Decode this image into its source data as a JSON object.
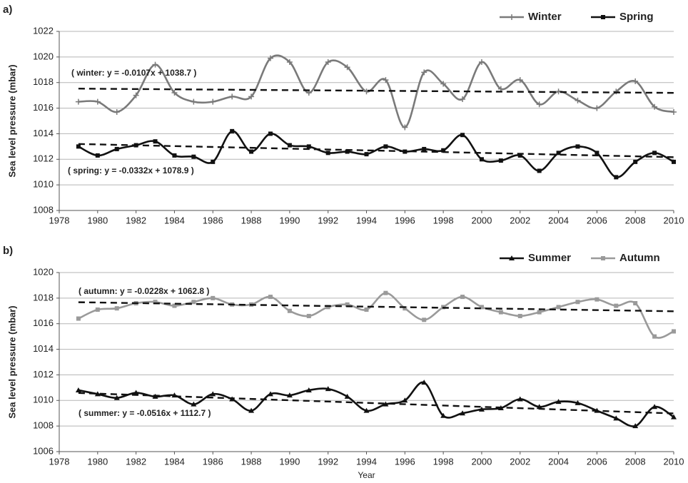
{
  "chart_data": [
    {
      "type": "line",
      "panel_label": "a)",
      "y_label": "Sea level pressure (mbar)",
      "legend": "top-right",
      "grid": true,
      "x": [
        1979,
        1980,
        1981,
        1982,
        1983,
        1984,
        1985,
        1986,
        1987,
        1988,
        1989,
        1990,
        1991,
        1992,
        1993,
        1994,
        1995,
        1996,
        1997,
        1998,
        1999,
        2000,
        2001,
        2002,
        2003,
        2004,
        2005,
        2006,
        2007,
        2008,
        2009,
        2010
      ],
      "xlim": [
        1978,
        2010
      ],
      "xticks": [
        1978,
        1980,
        1982,
        1984,
        1986,
        1988,
        1990,
        1992,
        1994,
        1996,
        1998,
        2000,
        2002,
        2004,
        2006,
        2008,
        2010
      ],
      "ylim": [
        1008,
        1022
      ],
      "yticks": [
        1008,
        1010,
        1012,
        1014,
        1016,
        1018,
        1020,
        1022
      ],
      "series": [
        {
          "name": "Winter",
          "color": "#7a7a7a",
          "marker": "plus",
          "values": [
            1016.5,
            1016.5,
            1015.7,
            1017.0,
            1019.4,
            1017.2,
            1016.5,
            1016.5,
            1016.9,
            1016.9,
            1019.9,
            1019.6,
            1017.2,
            1019.6,
            1019.2,
            1017.3,
            1018.2,
            1014.5,
            1018.8,
            1017.9,
            1016.7,
            1019.6,
            1017.5,
            1018.2,
            1016.3,
            1017.3,
            1016.6,
            1016.0,
            1017.3,
            1018.1,
            1016.1,
            1015.7
          ],
          "trend": {
            "label": "( winter: y = -0.0107x + 1038.7 )",
            "slope": -0.0107,
            "intercept": 1038.7
          }
        },
        {
          "name": "Spring",
          "color": "#111111",
          "marker": "square",
          "values": [
            1013.0,
            1012.3,
            1012.8,
            1013.1,
            1013.4,
            1012.3,
            1012.2,
            1011.8,
            1014.2,
            1012.6,
            1014.0,
            1013.1,
            1013.0,
            1012.5,
            1012.6,
            1012.4,
            1013.0,
            1012.6,
            1012.8,
            1012.7,
            1013.9,
            1012.0,
            1011.9,
            1012.3,
            1011.1,
            1012.5,
            1013.0,
            1012.5,
            1010.6,
            1011.8,
            1012.5,
            1011.8
          ],
          "trend": {
            "label": "( spring: y = -0.0332x + 1078.9 )",
            "slope": -0.0332,
            "intercept": 1078.9
          }
        }
      ]
    },
    {
      "type": "line",
      "panel_label": "b)",
      "y_label": "Sea level pressure (mbar)",
      "x_label": "Year",
      "legend": "top-right",
      "grid": true,
      "x": [
        1979,
        1980,
        1981,
        1982,
        1983,
        1984,
        1985,
        1986,
        1987,
        1988,
        1989,
        1990,
        1991,
        1992,
        1993,
        1994,
        1995,
        1996,
        1997,
        1998,
        1999,
        2000,
        2001,
        2002,
        2003,
        2004,
        2005,
        2006,
        2007,
        2008,
        2009,
        2010
      ],
      "xlim": [
        1978,
        2010
      ],
      "xticks": [
        1978,
        1980,
        1982,
        1984,
        1986,
        1988,
        1990,
        1992,
        1994,
        1996,
        1998,
        2000,
        2002,
        2004,
        2006,
        2008,
        2010
      ],
      "ylim": [
        1006,
        1020
      ],
      "yticks": [
        1006,
        1008,
        1010,
        1012,
        1014,
        1016,
        1018,
        1020
      ],
      "series": [
        {
          "name": "Summer",
          "color": "#111111",
          "marker": "triangle",
          "values": [
            1010.8,
            1010.5,
            1010.2,
            1010.6,
            1010.3,
            1010.4,
            1009.7,
            1010.5,
            1010.1,
            1009.2,
            1010.5,
            1010.4,
            1010.8,
            1010.9,
            1010.3,
            1009.2,
            1009.7,
            1010.0,
            1011.4,
            1008.8,
            1009.0,
            1009.3,
            1009.4,
            1010.1,
            1009.5,
            1009.9,
            1009.8,
            1009.2,
            1008.6,
            1008.0,
            1009.5,
            1008.7
          ],
          "trend": {
            "label": "( summer: y = -0.0516x + 1112.7 )",
            "slope": -0.0516,
            "intercept": 1112.7
          }
        },
        {
          "name": "Autumn",
          "color": "#9a9a9a",
          "marker": "square",
          "values": [
            1016.4,
            1017.1,
            1017.2,
            1017.6,
            1017.7,
            1017.4,
            1017.7,
            1018.0,
            1017.5,
            1017.5,
            1018.1,
            1017.0,
            1016.6,
            1017.3,
            1017.5,
            1017.1,
            1018.4,
            1017.2,
            1016.3,
            1017.3,
            1018.1,
            1017.3,
            1016.9,
            1016.6,
            1016.9,
            1017.3,
            1017.7,
            1017.9,
            1017.4,
            1017.6,
            1015.0,
            1015.4
          ],
          "trend": {
            "label": "( autumn: y = -0.0228x + 1062.8 )",
            "slope": -0.0228,
            "intercept": 1062.8
          }
        }
      ]
    }
  ]
}
